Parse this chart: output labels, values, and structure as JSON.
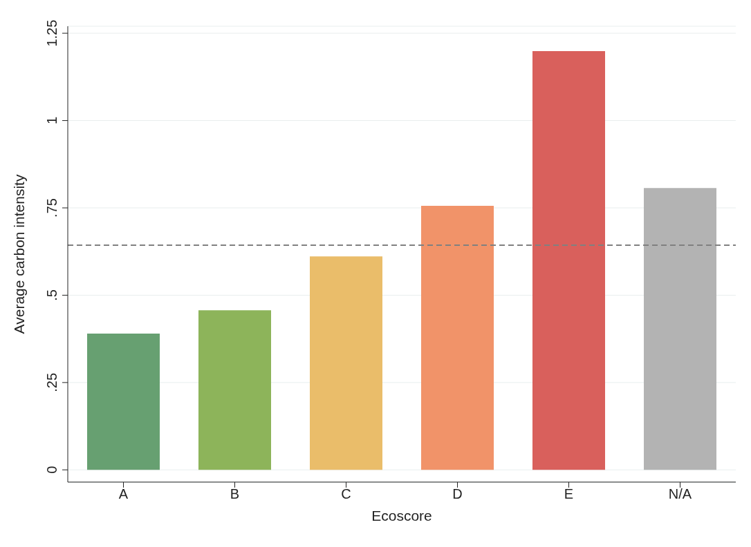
{
  "chart_data": {
    "type": "bar",
    "xlabel": "Ecoscore",
    "ylabel": "Average carbon intensity",
    "categories": [
      "A",
      "B",
      "C",
      "D",
      "E",
      "N/A"
    ],
    "values": [
      0.39,
      0.457,
      0.611,
      0.756,
      1.199,
      0.807
    ],
    "colors": [
      "#67a071",
      "#8db45a",
      "#eabd6a",
      "#f19369",
      "#d9605c",
      "#b3b3b3"
    ],
    "ylim": [
      -0.035,
      1.27
    ],
    "yticks": [
      0,
      {
        "value": 0.25,
        "label": ".25"
      },
      {
        "value": 0.5,
        "label": ".5"
      },
      {
        "value": 0.75,
        "label": ".75"
      },
      1,
      1.25
    ],
    "grid": "y",
    "ref_lines": [
      {
        "axis": "y",
        "value": 0.643,
        "color": "#808080",
        "line_style": "dashed"
      }
    ]
  }
}
